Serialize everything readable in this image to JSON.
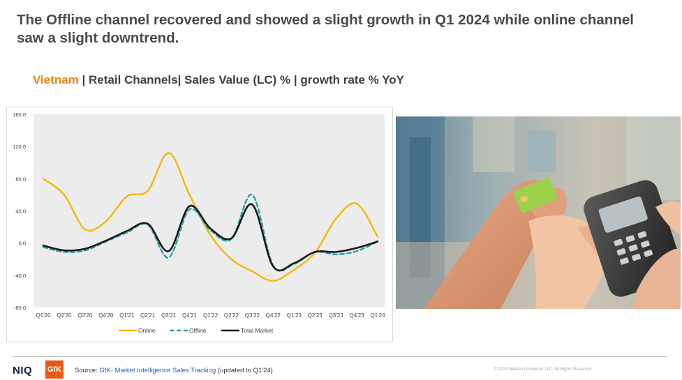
{
  "headline": "The Offline channel recovered and showed a slight growth in Q1 2024 while online channel saw a slight downtrend.",
  "subtitle": {
    "country": "Vietnam",
    "rest": " | Retail Channels| Sales Value (LC) % | growth rate % YoY"
  },
  "colors": {
    "online": "#f5b800",
    "offline": "#2e9ea6",
    "total": "#1a1a1a",
    "accent": "#e8830c",
    "plot_bg": "#ececec"
  },
  "chart_data": {
    "type": "line",
    "categories": [
      "Q1'20",
      "Q2'20",
      "Q3'20",
      "Q4'20",
      "Q1'21",
      "Q2'21",
      "Q3'21",
      "Q4'21",
      "Q1'22",
      "Q2'22",
      "Q3'22",
      "Q4'22",
      "Q1'23",
      "Q2'23",
      "Q3'23",
      "Q4'23",
      "Q1'24"
    ],
    "ylim": [
      -80,
      160
    ],
    "yticks": [
      "160.0",
      "120.0",
      "80.0",
      "40.0",
      "0.0",
      "-40.0",
      "-80.0"
    ],
    "ytick_values": [
      160,
      120,
      80,
      40,
      0,
      -40,
      -80
    ],
    "series": [
      {
        "name": "Online",
        "key": "online",
        "dash": "solid",
        "values": [
          80,
          60,
          17,
          27,
          58,
          65,
          112,
          60,
          10,
          -20,
          -35,
          -47,
          -33,
          -12,
          30,
          49,
          8
        ]
      },
      {
        "name": "Offline",
        "key": "offline",
        "dash": "dashed",
        "values": [
          -5,
          -11,
          -9,
          2,
          13,
          23,
          -18,
          42,
          16,
          5,
          60,
          -28,
          -26,
          -11,
          -14,
          -10,
          2
        ]
      },
      {
        "name": "Total Market",
        "key": "total",
        "dash": "solid",
        "values": [
          -3,
          -9,
          -7,
          3,
          15,
          24,
          -10,
          46,
          18,
          6,
          48,
          -29,
          -25,
          -11,
          -11,
          -6,
          2
        ]
      }
    ],
    "legend_position": "bottom",
    "grid": false
  },
  "photo": {
    "description_icon": "card-payment-terminal-photo"
  },
  "footer": {
    "logo_niq": "NIQ",
    "logo_gfk": "GfK",
    "source_prefix": "Source: ",
    "source_link": "GfK- Market Intelligence Sales Tracking",
    "source_suffix": " (updated to Q1'24)",
    "copyright": "© 2024 Nielsen Consumer LLC. All Rights Reserved."
  }
}
